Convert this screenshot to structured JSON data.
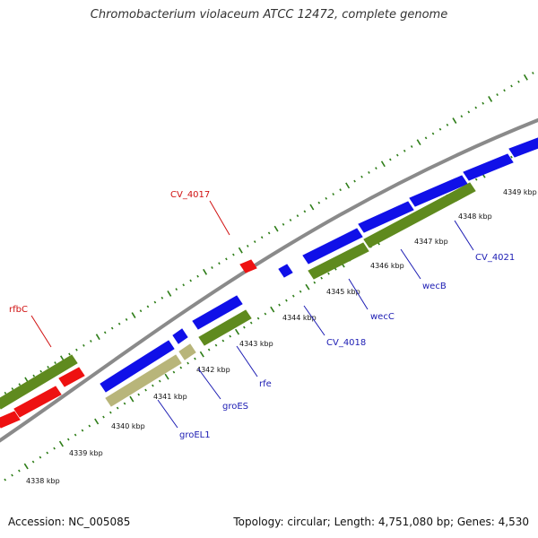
{
  "title": "Chromobacterium violaceum ATCC 12472, complete genome",
  "footer": {
    "accession": "Accession: NC_005085",
    "summary": "Topology: circular; Length: 4,751,080 bp; Genes: 4,530"
  },
  "colors": {
    "backbone": "#8a8a8a",
    "tick": "#2e7d18",
    "forward_cds": "#1010e8",
    "reverse_cds": "#5f8a1e",
    "pale_cds": "#b8b57a",
    "rna": "#ee1111",
    "label_forward": "#1b1bb3",
    "label_other": "#d01010"
  },
  "ticks": [
    {
      "label": "4338 kbp"
    },
    {
      "label": "4339 kbp"
    },
    {
      "label": "4340 kbp"
    },
    {
      "label": "4341 kbp"
    },
    {
      "label": "4342 kbp"
    },
    {
      "label": "4343 kbp"
    },
    {
      "label": "4344 kbp"
    },
    {
      "label": "4345 kbp"
    },
    {
      "label": "4346 kbp"
    },
    {
      "label": "4347 kbp"
    },
    {
      "label": "4348 kbp"
    },
    {
      "label": "4349 kbp"
    }
  ],
  "gene_labels": [
    {
      "name": "rfbC",
      "color_key": "label_other"
    },
    {
      "name": "CV_4017",
      "color_key": "label_other"
    },
    {
      "name": "groEL1",
      "color_key": "label_forward"
    },
    {
      "name": "groES",
      "color_key": "label_forward"
    },
    {
      "name": "rfe",
      "color_key": "label_forward"
    },
    {
      "name": "CV_4018",
      "color_key": "label_forward"
    },
    {
      "name": "wecC",
      "color_key": "label_forward"
    },
    {
      "name": "wecB",
      "color_key": "label_forward"
    },
    {
      "name": "CV_4021",
      "color_key": "label_forward"
    }
  ]
}
